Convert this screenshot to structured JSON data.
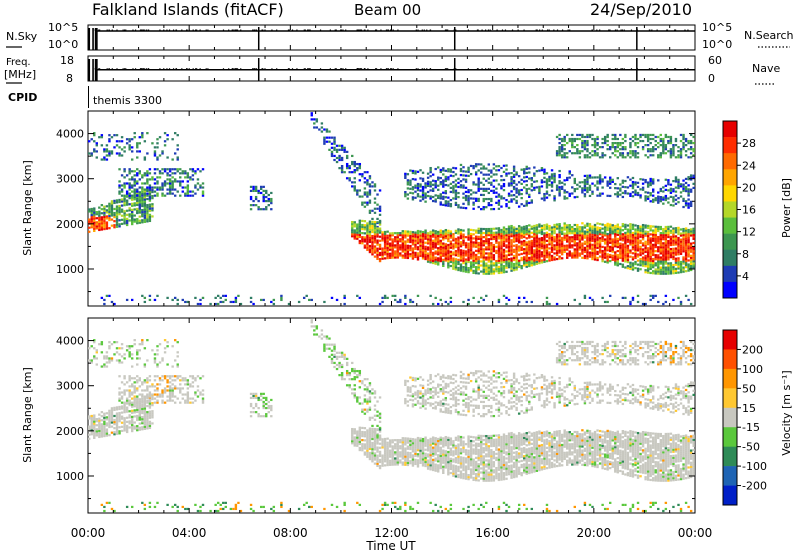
{
  "header": {
    "station": "Falkland Islands (fitACF)",
    "beam": "Beam 00",
    "date": "24/Sep/2010",
    "cpid_label": "CPID",
    "cpid_value": "themis 3300"
  },
  "top_panels": {
    "nsky": {
      "left_label": "N.Sky",
      "left_ticks": [
        "10^5",
        "10^0"
      ],
      "right_label": "N.Search",
      "right_ticks": [
        "10^5",
        "10^0"
      ]
    },
    "freq": {
      "left_label_1": "Freq.",
      "left_label_2": "[MHz]",
      "left_ticks": [
        "18",
        "8"
      ],
      "right_label": "Nave",
      "right_ticks": [
        "60",
        "0"
      ]
    }
  },
  "chart_data": [
    {
      "type": "heatmap",
      "name_panel": "power",
      "ylabel": "Slant Range [km]",
      "y_ticks": [
        1000,
        2000,
        3000,
        4000
      ],
      "ylim": [
        180,
        4500
      ],
      "xlim_hours": [
        0,
        24
      ],
      "colorbar": {
        "label": "Power [dB]",
        "ticks": [
          "4",
          "8",
          "12",
          "16",
          "20",
          "24",
          "28"
        ],
        "colors": [
          "#0000ff",
          "#1e3cb4",
          "#2f7d64",
          "#3c9650",
          "#5abe3c",
          "#b4d728",
          "#ffd700",
          "#ffa500",
          "#ff6a00",
          "#ff2d00",
          "#e60000"
        ]
      }
    },
    {
      "type": "heatmap",
      "name_panel": "velocity",
      "ylabel": "Slant Range [km]",
      "y_ticks": [
        1000,
        2000,
        3000,
        4000
      ],
      "ylim": [
        180,
        4500
      ],
      "xlim_hours": [
        0,
        24
      ],
      "colorbar": {
        "label": "Velocity [m s⁻¹]",
        "ticks": [
          "200",
          "100",
          "50",
          "15",
          "-15",
          "-50",
          "-100",
          "-200"
        ],
        "colors": [
          "#0020c8",
          "#1e64b4",
          "#2e8b57",
          "#5ac83c",
          "#c8c8c0",
          "#ffc832",
          "#ff9600",
          "#ff5000",
          "#e60000"
        ]
      }
    }
  ],
  "x_axis": {
    "ticks": [
      "00:00",
      "04:00",
      "08:00",
      "12:00",
      "16:00",
      "20:00",
      "00:00"
    ],
    "label": "Time UT"
  }
}
